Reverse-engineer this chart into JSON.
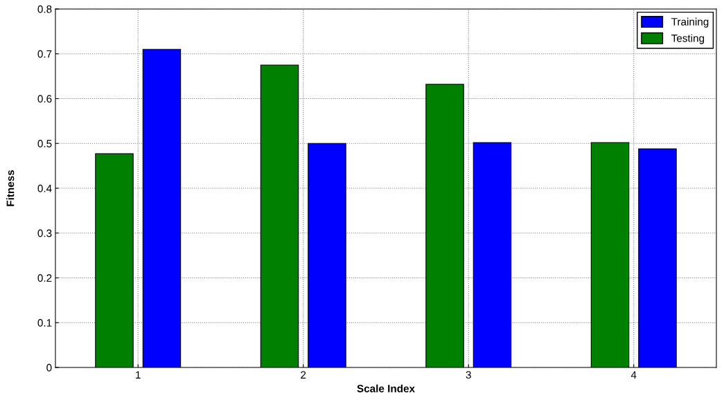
{
  "chart_data": {
    "type": "bar",
    "xlabel": "Scale Index",
    "ylabel": "Fitness",
    "categories": [
      "1",
      "2",
      "3",
      "4"
    ],
    "series": [
      {
        "name": "Testing",
        "color": "#008000",
        "values": [
          0.477,
          0.675,
          0.632,
          0.502
        ]
      },
      {
        "name": "Training",
        "color": "#0000ff",
        "values": [
          0.71,
          0.5,
          0.502,
          0.488
        ]
      }
    ],
    "ylim": [
      0,
      0.8
    ],
    "yticks": [
      {
        "value": 0,
        "label": "0"
      },
      0.1,
      0.2,
      0.3,
      0.4,
      0.5,
      0.6,
      0.7,
      0.8
    ],
    "grid": true,
    "legend": "top right"
  }
}
